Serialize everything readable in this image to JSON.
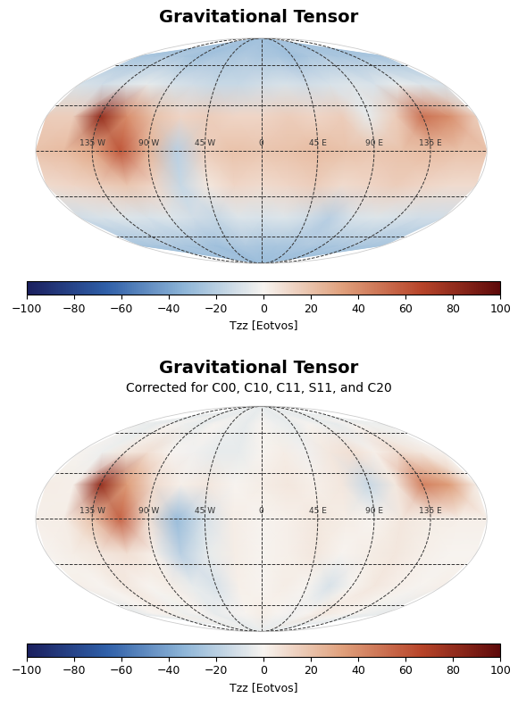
{
  "chart_data": [
    {
      "type": "heatmap",
      "title": "Gravitational Tensor",
      "x": [
        -180,
        -157.5,
        -135,
        -112.5,
        -90,
        -67.5,
        -45,
        -22.5,
        0,
        22.5,
        45,
        67.5,
        90,
        112.5,
        135,
        157.5,
        180
      ],
      "y": [
        -90,
        -67.5,
        -45,
        -22.5,
        0,
        22.5,
        45,
        67.5,
        90
      ],
      "values": [
        [
          -30,
          -30,
          -30,
          -30,
          -30,
          -30,
          -30,
          -30,
          -30,
          -30,
          -30,
          -30,
          -30,
          -30,
          -30,
          -30,
          -30
        ],
        [
          -25,
          -25,
          -22,
          -25,
          -25,
          -28,
          -25,
          -22,
          -25,
          -25,
          -25,
          -22,
          -25,
          -25,
          -22,
          -25,
          -25
        ],
        [
          -12,
          -10,
          -8,
          -10,
          -8,
          -12,
          -15,
          -8,
          -10,
          -8,
          -12,
          -20,
          -10,
          -8,
          -10,
          -12,
          -12
        ],
        [
          10,
          12,
          15,
          18,
          12,
          -15,
          5,
          12,
          10,
          12,
          15,
          10,
          12,
          15,
          12,
          10,
          10
        ],
        [
          20,
          22,
          30,
          60,
          25,
          -20,
          15,
          20,
          18,
          20,
          22,
          20,
          18,
          20,
          22,
          20,
          20
        ],
        [
          15,
          15,
          80,
          40,
          20,
          12,
          15,
          12,
          12,
          15,
          12,
          15,
          -5,
          15,
          50,
          40,
          15
        ],
        [
          -10,
          -12,
          -8,
          -5,
          -10,
          -12,
          -15,
          -15,
          -12,
          -10,
          -12,
          -10,
          -8,
          -10,
          -5,
          -8,
          -10
        ],
        [
          -25,
          -25,
          -22,
          -25,
          -28,
          -25,
          -25,
          -22,
          -25,
          -25,
          -28,
          -25,
          -22,
          -25,
          -25,
          -25,
          -25
        ],
        [
          -28,
          -28,
          -28,
          -28,
          -28,
          -28,
          -28,
          -28,
          -28,
          -28,
          -28,
          -28,
          -28,
          -28,
          -28,
          -28,
          -28
        ]
      ],
      "xticks": [
        {
          "value": -135,
          "label": "135 W"
        },
        {
          "value": -90,
          "label": "90 W"
        },
        {
          "value": -45,
          "label": "45 W"
        },
        0,
        {
          "value": 45,
          "label": "45 E"
        },
        {
          "value": 90,
          "label": "90 E"
        },
        {
          "value": 135,
          "label": "135 E"
        }
      ],
      "yticks": [
        -60,
        -30,
        0,
        30,
        60
      ],
      "grid": true,
      "tick_labels": "x",
      "colorbar_label": "Tzz [Eotvos]",
      "colorbar_range": [
        -100,
        100
      ],
      "colorbar_ticks": [
        -100,
        -80,
        -60,
        -40,
        -20,
        0,
        20,
        40,
        60,
        80,
        100
      ]
    },
    {
      "type": "heatmap",
      "title": "Gravitational Tensor",
      "subtitle": "Corrected for C00, C10, C11, S11, and C20",
      "x": [
        -180,
        -157.5,
        -135,
        -112.5,
        -90,
        -67.5,
        -45,
        -22.5,
        0,
        22.5,
        45,
        67.5,
        90,
        112.5,
        135,
        157.5,
        180
      ],
      "y": [
        -90,
        -67.5,
        -45,
        -22.5,
        0,
        22.5,
        45,
        67.5,
        90
      ],
      "values": [
        [
          -5,
          -5,
          -5,
          -5,
          -5,
          -5,
          -5,
          -5,
          -5,
          -5,
          -5,
          -5,
          -5,
          -5,
          -5,
          -5,
          -5
        ],
        [
          -5,
          0,
          2,
          -3,
          0,
          -5,
          -2,
          0,
          3,
          0,
          -2,
          0,
          5,
          2,
          0,
          -3,
          -5
        ],
        [
          2,
          0,
          5,
          0,
          3,
          -5,
          -10,
          2,
          0,
          3,
          0,
          -10,
          0,
          5,
          2,
          0,
          2
        ],
        [
          0,
          3,
          5,
          8,
          2,
          -20,
          -5,
          3,
          0,
          2,
          5,
          0,
          3,
          5,
          2,
          0,
          0
        ],
        [
          2,
          3,
          20,
          55,
          8,
          -30,
          -10,
          3,
          0,
          2,
          5,
          3,
          0,
          5,
          3,
          2,
          2
        ],
        [
          3,
          2,
          80,
          35,
          10,
          2,
          5,
          0,
          3,
          5,
          2,
          5,
          -15,
          5,
          45,
          35,
          3
        ],
        [
          0,
          -3,
          5,
          8,
          0,
          -2,
          -5,
          -5,
          0,
          3,
          -2,
          5,
          8,
          2,
          10,
          5,
          0
        ],
        [
          -3,
          -5,
          0,
          -3,
          -5,
          0,
          -3,
          -5,
          0,
          -3,
          -5,
          0,
          -3,
          -5,
          0,
          -3,
          -3
        ],
        [
          -5,
          -5,
          -5,
          -5,
          -5,
          -5,
          -5,
          -5,
          -5,
          -5,
          -5,
          -5,
          -5,
          -5,
          -5,
          -5,
          -5
        ]
      ],
      "xticks": [
        {
          "value": -135,
          "label": "135 W"
        },
        {
          "value": -90,
          "label": "90 W"
        },
        {
          "value": -45,
          "label": "45 W"
        },
        0,
        {
          "value": 45,
          "label": "45 E"
        },
        {
          "value": 90,
          "label": "90 E"
        },
        {
          "value": 135,
          "label": "135 E"
        }
      ],
      "yticks": [
        -60,
        -30,
        0,
        30,
        60
      ],
      "grid": true,
      "tick_labels": "x",
      "colorbar_label": "Tzz [Eotvos]",
      "colorbar_range": [
        -100,
        100
      ],
      "colorbar_ticks": [
        -100,
        -80,
        -60,
        -40,
        -20,
        0,
        20,
        40,
        60,
        80,
        100
      ]
    }
  ]
}
